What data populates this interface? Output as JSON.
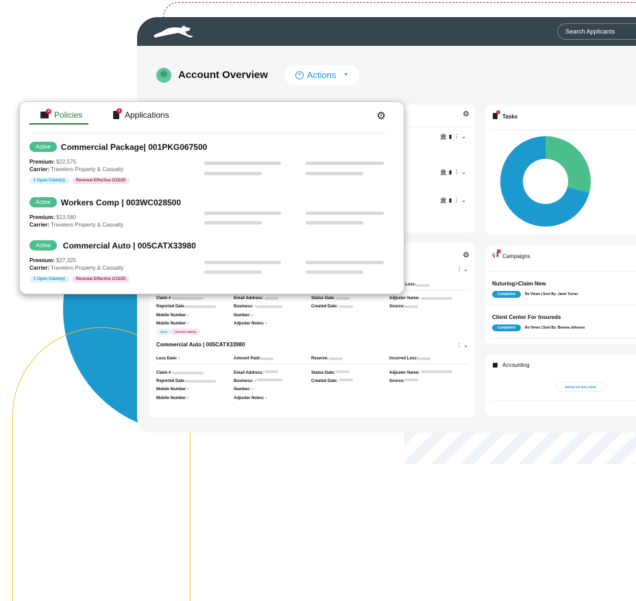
{
  "colors": {
    "header": "#37454f",
    "accent": "#1c9ad0",
    "active": "#4bbf8b",
    "badge": "#d3283a",
    "task_green": "#4bbf8b",
    "task_blue": "#1c9ad0"
  },
  "header": {
    "logo": "leaping-cat-logo",
    "search_placeholder": "Search Applicants"
  },
  "page": {
    "title": "Account Overview",
    "actions_label": "Actions"
  },
  "policies_card": {
    "tabs": [
      {
        "label": "Policies",
        "badge": "4"
      },
      {
        "label": "Applications",
        "badge": "3"
      }
    ],
    "premium_label": "Premium:",
    "carrier_label": "Carrier:",
    "policies": [
      {
        "status": "Active",
        "title": "Commercial Package| 001PKG067500",
        "premium": "$22,575",
        "carrier": "Travelers Property & Casualty",
        "chips": [
          "1 Open Claim(s)",
          "Renewal Effective 2/15/25"
        ]
      },
      {
        "status": "Active",
        "title": "Workers Comp | 003WC028500",
        "premium": "$13,580",
        "carrier": "Travelers Property & Casualty",
        "chips": []
      },
      {
        "status": "Active",
        "title": "Commercial Auto | 005CATX33980",
        "premium": "$27,325",
        "carrier": "Travelers Property & Casualty",
        "chips": [
          "1 Open Claim(s)",
          "Renewal Effective 2/15/25"
        ]
      }
    ]
  },
  "claims": {
    "fields": {
      "loss": "Loss:",
      "claim": "Claim #",
      "email": "Email Address: -",
      "status_date": "Status Date:",
      "adjuster": "Adjuster Name: -",
      "reported": "Reported Date",
      "business": "Business: -",
      "created": "Created Date:",
      "source": "Source:",
      "mobile": "Mobile Number -",
      "number": "Number: -",
      "notes": "Adjuster Notes: -",
      "loss_date": "Loss Date: -",
      "amount_paid": "Amount Paid:",
      "reserve": "Reserve:",
      "incurred": "Incurred Loss:",
      "adjuster2": "Adjuster Name:"
    },
    "chips": [
      "Open",
      "General Liability"
    ],
    "second_title": "Commercial Auto | 005CATX33980"
  },
  "tasks": {
    "title": "Tasks",
    "badge": "3"
  },
  "chart_data": {
    "type": "pie",
    "donut": true,
    "values": [
      29,
      71
    ],
    "colors": [
      "#4bbf8b",
      "#1c9ad0"
    ]
  },
  "campaigns": {
    "title": "Campaigns",
    "badge": "2",
    "items": [
      {
        "name": "Nuturing>Claim New",
        "status": "Completed",
        "meta": "No Views | Sent By: Janie Turner"
      },
      {
        "name": "Client Center For Insureds",
        "status": "Completed",
        "meta": "No Views | Sent By: Brenna Johnson"
      }
    ]
  },
  "accounting": {
    "title": "Accounting",
    "button": "SHOW A/R BALANCE"
  }
}
